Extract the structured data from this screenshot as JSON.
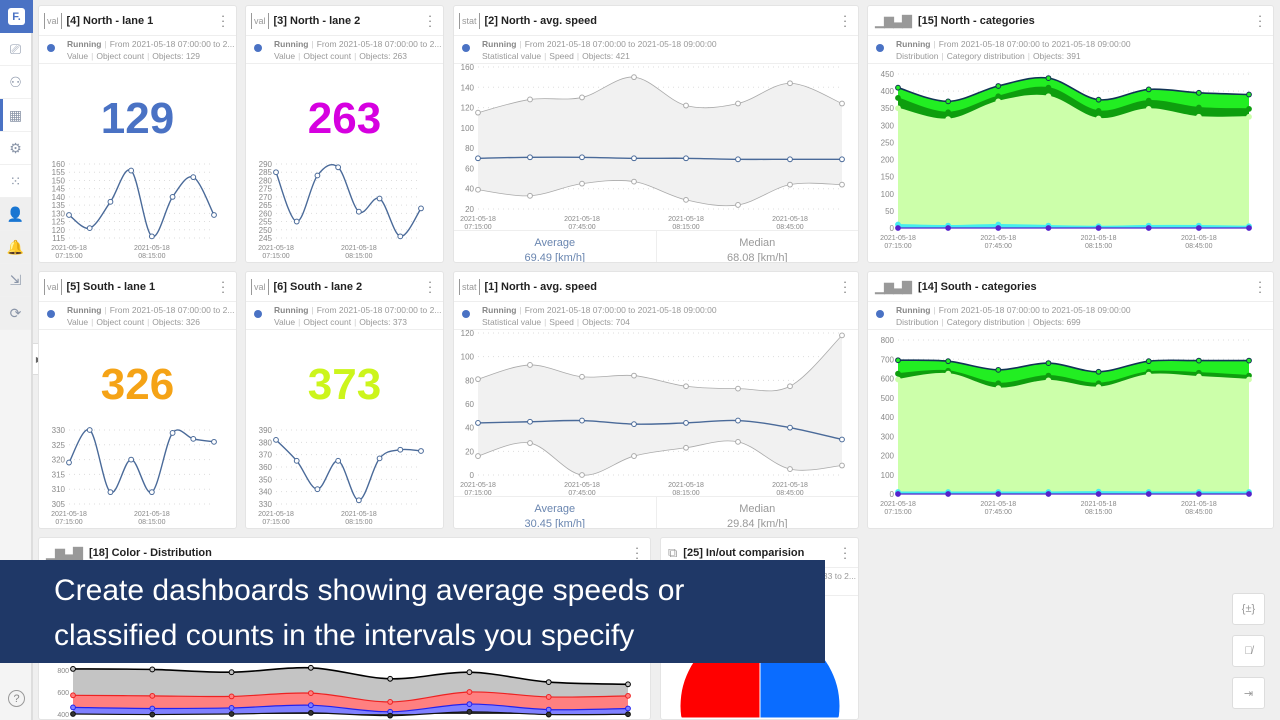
{
  "sidebar": {
    "logo": "F.",
    "items": [
      {
        "icon": "camera-icon",
        "glyph": "⎚"
      },
      {
        "icon": "workflow-icon",
        "glyph": "⚇"
      },
      {
        "icon": "dashboard-icon",
        "glyph": "▦",
        "active": true
      },
      {
        "icon": "dashboard-settings-icon",
        "glyph": "⚙"
      },
      {
        "icon": "grid-dots-icon",
        "glyph": "⁙"
      },
      {
        "icon": "users-icon",
        "glyph": "👤"
      },
      {
        "icon": "bell-icon",
        "glyph": "🔔"
      },
      {
        "icon": "export-icon",
        "glyph": "⇲"
      },
      {
        "icon": "logout-icon",
        "glyph": "⟳"
      }
    ],
    "help": "?",
    "collapse": "▶"
  },
  "colors": {
    "accent": "#4a72c4",
    "banner": "#1f3867"
  },
  "cards": [
    {
      "type": "value",
      "icon": "val",
      "title": "[4] North - lane 1",
      "status": "Running",
      "range": "From 2021-05-18 07:00:00 to 2...",
      "meta": [
        "Value",
        "Object count",
        "Objects: 129"
      ],
      "value": "129",
      "value_color": "#4a72c4",
      "chart": {
        "x": [
          "2021-05-18 07:15:00",
          "",
          "",
          "",
          "2021-05-18 08:15:00",
          "",
          "",
          ""
        ],
        "yticks": [
          115,
          120,
          125,
          130,
          135,
          140,
          145,
          150,
          155,
          160
        ],
        "ylim": [
          115,
          160
        ],
        "values": [
          129,
          121,
          137,
          156,
          116,
          140,
          152,
          129
        ]
      }
    },
    {
      "type": "value",
      "icon": "val",
      "title": "[3] North -  lane 2",
      "status": "Running",
      "range": "From 2021-05-18 07:00:00 to 2...",
      "meta": [
        "Value",
        "Object count",
        "Objects: 263"
      ],
      "value": "263",
      "value_color": "#d600e0",
      "chart": {
        "x": [
          "2021-05-18 07:15:00",
          "",
          "",
          "",
          "2021-05-18 08:15:00",
          "",
          "",
          ""
        ],
        "yticks": [
          245,
          250,
          255,
          260,
          265,
          270,
          275,
          280,
          285,
          290
        ],
        "ylim": [
          245,
          290
        ],
        "values": [
          285,
          255,
          283,
          288,
          261,
          269,
          246,
          263
        ]
      }
    },
    {
      "type": "stat",
      "icon": "stat",
      "title": "[2] North - avg. speed",
      "status": "Running",
      "range": "From 2021-05-18 07:00:00 to 2021-05-18 09:00:00",
      "meta": [
        "Statistical value",
        "Speed",
        "Objects: 421"
      ],
      "stats": [
        {
          "label": "Average",
          "value": "69.49 [km/h]"
        },
        {
          "label": "Median",
          "value": "68.08 [km/h]"
        }
      ],
      "chart": {
        "x": [
          "2021-05-18 07:15:00",
          "",
          "2021-05-18 07:45:00",
          "",
          "2021-05-18 08:15:00",
          "",
          "2021-05-18 08:45:00",
          ""
        ],
        "yticks": [
          20,
          40,
          60,
          80,
          100,
          120,
          140,
          160
        ],
        "ylim": [
          20,
          160
        ],
        "max": [
          115,
          128,
          130,
          150,
          122,
          124,
          144,
          124
        ],
        "avg": [
          70,
          71,
          71,
          70,
          70,
          69,
          69,
          69
        ],
        "min": [
          39,
          33,
          45,
          47,
          29,
          24,
          44,
          44
        ]
      }
    },
    {
      "type": "cat",
      "icon": "bars",
      "title": "[15] North - categories",
      "status": "Running",
      "range": "From 2021-05-18 07:00:00 to 2021-05-18 09:00:00",
      "meta": [
        "Distribution",
        "Category distribution",
        "Objects: 391"
      ],
      "chart": {
        "type": "area",
        "x": [
          "2021-05-18 07:15:00",
          "",
          "2021-05-18 07:45:00",
          "",
          "2021-05-18 08:15:00",
          "",
          "2021-05-18 08:45:00",
          ""
        ],
        "yticks": [
          0,
          50,
          100,
          150,
          200,
          250,
          300,
          350,
          400,
          450
        ],
        "ylim": [
          0,
          450
        ],
        "series": [
          {
            "values": [
              410,
              370,
              415,
              438,
              375,
              405,
              395,
              390
            ],
            "color": "#22ee22"
          },
          {
            "values": [
              380,
              338,
              385,
              410,
              342,
              372,
              352,
              348
            ],
            "color": "#0e9e0e"
          },
          {
            "values": [
              350,
              318,
              370,
              385,
              320,
              348,
              325,
              325
            ],
            "color": "#ccffaa"
          },
          {
            "values": [
              10,
              7,
              10,
              7,
              5,
              7,
              7,
              5
            ],
            "color": "#44eeee"
          },
          {
            "values": [
              0,
              0,
              0,
              0,
              0,
              0,
              0,
              0
            ],
            "color": "#5522cc"
          }
        ]
      }
    },
    {
      "type": "value",
      "icon": "val",
      "title": "[5] South - lane 1",
      "status": "Running",
      "range": "From 2021-05-18 07:00:00 to 2...",
      "meta": [
        "Value",
        "Object count",
        "Objects: 326"
      ],
      "value": "326",
      "value_color": "#f5a316",
      "chart": {
        "x": [
          "2021-05-18 07:15:00",
          "",
          "",
          "",
          "2021-05-18 08:15:00",
          "",
          "",
          ""
        ],
        "yticks": [
          305,
          310,
          315,
          320,
          325,
          330
        ],
        "ylim": [
          305,
          330
        ],
        "values": [
          319,
          330,
          309,
          320,
          309,
          329,
          327,
          326
        ]
      }
    },
    {
      "type": "value",
      "icon": "val",
      "title": "[6] South - lane 2",
      "status": "Running",
      "range": "From 2021-05-18 07:00:00 to 2...",
      "meta": [
        "Value",
        "Object count",
        "Objects: 373"
      ],
      "value": "373",
      "value_color": "#ccf51c",
      "chart": {
        "x": [
          "2021-05-18 07:15:00",
          "",
          "",
          "",
          "2021-05-18 08:15:00",
          "",
          "",
          ""
        ],
        "yticks": [
          330,
          340,
          350,
          360,
          370,
          380,
          390
        ],
        "ylim": [
          330,
          390
        ],
        "values": [
          382,
          365,
          342,
          365,
          333,
          367,
          374,
          373
        ]
      }
    },
    {
      "type": "stat",
      "icon": "stat",
      "title": "[1] North - avg. speed",
      "status": "Running",
      "range": "From 2021-05-18 07:00:00 to 2021-05-18 09:00:00",
      "meta": [
        "Statistical value",
        "Speed",
        "Objects: 704"
      ],
      "stats": [
        {
          "label": "Average",
          "value": "30.45 [km/h]"
        },
        {
          "label": "Median",
          "value": "29.84 [km/h]"
        }
      ],
      "chart": {
        "x": [
          "2021-05-18 07:15:00",
          "",
          "2021-05-18 07:45:00",
          "",
          "2021-05-18 08:15:00",
          "",
          "2021-05-18 08:45:00",
          ""
        ],
        "yticks": [
          0,
          20,
          40,
          60,
          80,
          100,
          120
        ],
        "ylim": [
          0,
          120
        ],
        "max": [
          81,
          93,
          83,
          84,
          75,
          73,
          75,
          118
        ],
        "avg": [
          44,
          45,
          46,
          43,
          44,
          46,
          40,
          30
        ],
        "min": [
          16,
          27,
          0,
          16,
          23,
          28,
          5,
          8
        ]
      }
    },
    {
      "type": "cat",
      "icon": "bars",
      "title": "[14] South - categories",
      "status": "Running",
      "range": "From 2021-05-18 07:00:00 to 2021-05-18 09:00:00",
      "meta": [
        "Distribution",
        "Category distribution",
        "Objects: 699"
      ],
      "chart": {
        "type": "area",
        "x": [
          "2021-05-18 07:15:00",
          "",
          "2021-05-18 07:45:00",
          "",
          "2021-05-18 08:15:00",
          "",
          "2021-05-18 08:45:00",
          ""
        ],
        "yticks": [
          0,
          100,
          200,
          300,
          400,
          500,
          600,
          700,
          800
        ],
        "ylim": [
          0,
          800
        ],
        "series": [
          {
            "values": [
              695,
              690,
              645,
              680,
              635,
              690,
              693,
              693
            ],
            "color": "#22ee22"
          },
          {
            "values": [
              625,
              640,
              575,
              615,
              575,
              635,
              630,
              615
            ],
            "color": "#0e9e0e"
          },
          {
            "values": [
              595,
              625,
              550,
              590,
              555,
              620,
              610,
              595
            ],
            "color": "#ccffaa"
          },
          {
            "values": [
              10,
              10,
              10,
              10,
              12,
              10,
              10,
              10
            ],
            "color": "#44eeee"
          },
          {
            "values": [
              0,
              0,
              0,
              0,
              0,
              0,
              0,
              0
            ],
            "color": "#5522cc"
          }
        ]
      }
    },
    {
      "type": "color",
      "icon": "bars",
      "title": "[18] Color - Distribution",
      "chart": {
        "type": "area",
        "yticks": [
          400,
          600,
          800
        ],
        "ylim": [
          400,
          900
        ],
        "series": [
          {
            "values": [
              810,
              805,
              780,
              820,
              720,
              780,
              690,
              670
            ],
            "color": "#c4c4c4",
            "line": "#000000"
          },
          {
            "values": [
              570,
              565,
              560,
              590,
              510,
              600,
              555,
              565
            ],
            "color": "#ff8080",
            "line": "#ee2222"
          },
          {
            "values": [
              460,
              450,
              455,
              480,
              420,
              490,
              440,
              450
            ],
            "color": "#8080ff",
            "line": "#2222ee"
          },
          {
            "values": [
              400,
              395,
              400,
              410,
              385,
              420,
              395,
              398
            ],
            "color": "#333333",
            "line": "#111111"
          }
        ]
      }
    },
    {
      "type": "pie",
      "icon": "inout",
      "title": "[25] In/out comparision",
      "range": "33 to 2...",
      "chart": {
        "type": "pie",
        "slices": [
          {
            "value": 0.5,
            "color": "#ff0000"
          },
          {
            "value": 0.5,
            "color": "#0a6cff"
          }
        ]
      }
    }
  ],
  "banner": {
    "line1": "Create dashboards showing average speeds or",
    "line2": "classified counts in the intervals you specify"
  },
  "right_buttons": [
    {
      "icon": "variables-icon",
      "glyph": "{±}"
    },
    {
      "icon": "hide-icon",
      "glyph": "👁̸"
    },
    {
      "icon": "export-screen-icon",
      "glyph": "⇥"
    }
  ]
}
